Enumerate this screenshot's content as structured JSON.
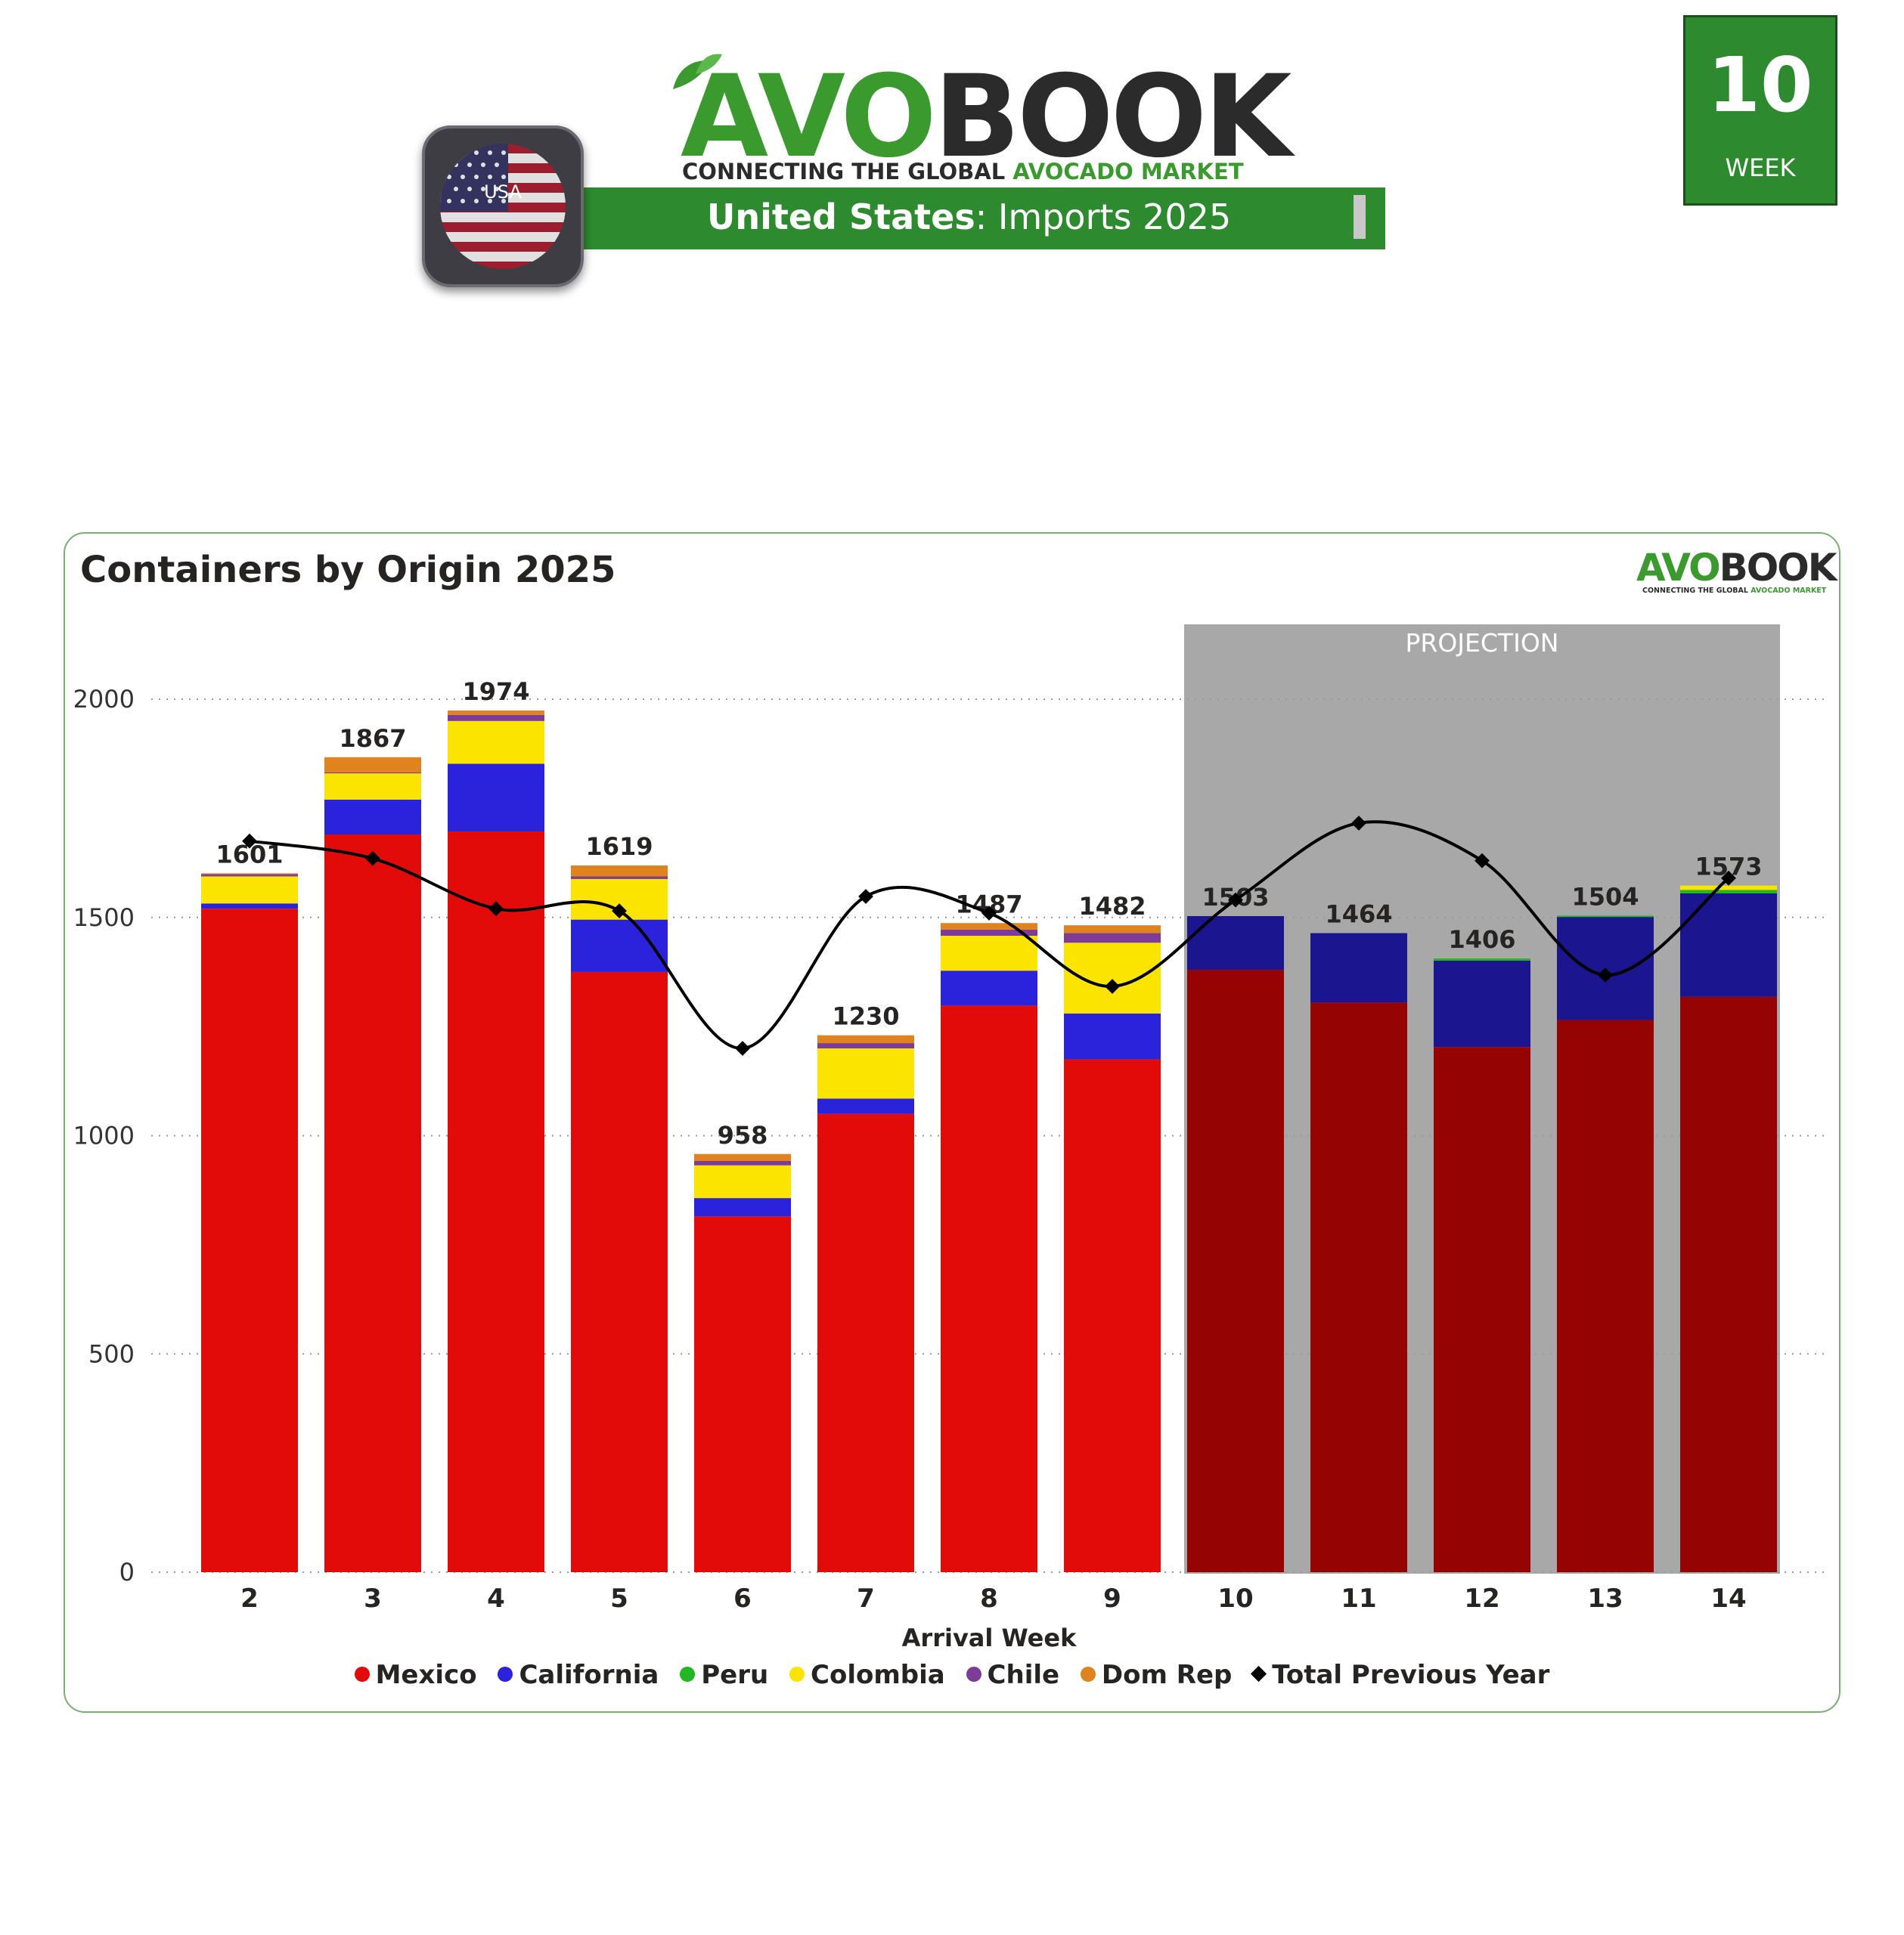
{
  "header": {
    "logo_avo": "AVO",
    "logo_book": "BOOK",
    "logo_tagline_a": "CONNECTING THE GLOBAL ",
    "logo_tagline_b": "AVOCADO MARKET",
    "banner_country": "United States",
    "banner_rest": ": Imports 2025",
    "flag_label": "USA",
    "week_number": "10",
    "week_label": "WEEK"
  },
  "colors": {
    "brand_green": "#2e8a2f",
    "mexico": "#e30a0a",
    "california": "#2b22db",
    "peru": "#22b822",
    "colombia": "#fbe400",
    "chile": "#7d3c98",
    "domrep": "#e0821e",
    "mexico_projection": "#960303",
    "california_projection": "#1b1590",
    "projection_bg": "#a8a8a8"
  },
  "chart_data": {
    "type": "bar",
    "stacked": true,
    "title": "Containers by Origin 2025",
    "xlabel": "Arrival Week",
    "ylabel": "",
    "ylim": [
      0,
      2000
    ],
    "yticks": [
      0,
      500,
      1000,
      1500,
      2000
    ],
    "grid": true,
    "legend_position": "bottom",
    "categories": [
      "2",
      "3",
      "4",
      "5",
      "6",
      "7",
      "8",
      "9",
      "10",
      "11",
      "12",
      "13",
      "14"
    ],
    "projection_label": "PROJECTION",
    "projection_categories": [
      "10",
      "11",
      "12",
      "13",
      "14"
    ],
    "series": [
      {
        "name": "Mexico",
        "values": [
          1520,
          1690,
          1697,
          1375,
          815,
          1050,
          1298,
          1175,
          1380,
          1305,
          1203,
          1265,
          1318
        ]
      },
      {
        "name": "California",
        "values": [
          12,
          80,
          155,
          120,
          42,
          35,
          80,
          105,
          123,
          159,
          198,
          236,
          237
        ]
      },
      {
        "name": "Peru",
        "values": [
          0,
          0,
          0,
          0,
          0,
          0,
          0,
          0,
          0,
          0,
          5,
          3,
          8
        ]
      },
      {
        "name": "Colombia",
        "values": [
          62,
          60,
          98,
          93,
          75,
          115,
          80,
          162,
          0,
          0,
          0,
          0,
          10
        ]
      },
      {
        "name": "Chile",
        "values": [
          5,
          2,
          14,
          6,
          10,
          12,
          14,
          22,
          0,
          0,
          0,
          0,
          0
        ]
      },
      {
        "name": "Dom Rep",
        "values": [
          2,
          35,
          10,
          25,
          16,
          18,
          15,
          18,
          0,
          0,
          0,
          0,
          0
        ]
      }
    ],
    "totals": [
      1601,
      1867,
      1974,
      1619,
      958,
      1230,
      1487,
      1482,
      1503,
      1464,
      1406,
      1504,
      1573
    ],
    "line_series": {
      "name": "Total Previous Year",
      "values": [
        1675,
        1635,
        1520,
        1515,
        1200,
        1548,
        1510,
        1342,
        1540,
        1716,
        1630,
        1368,
        1590
      ]
    }
  }
}
